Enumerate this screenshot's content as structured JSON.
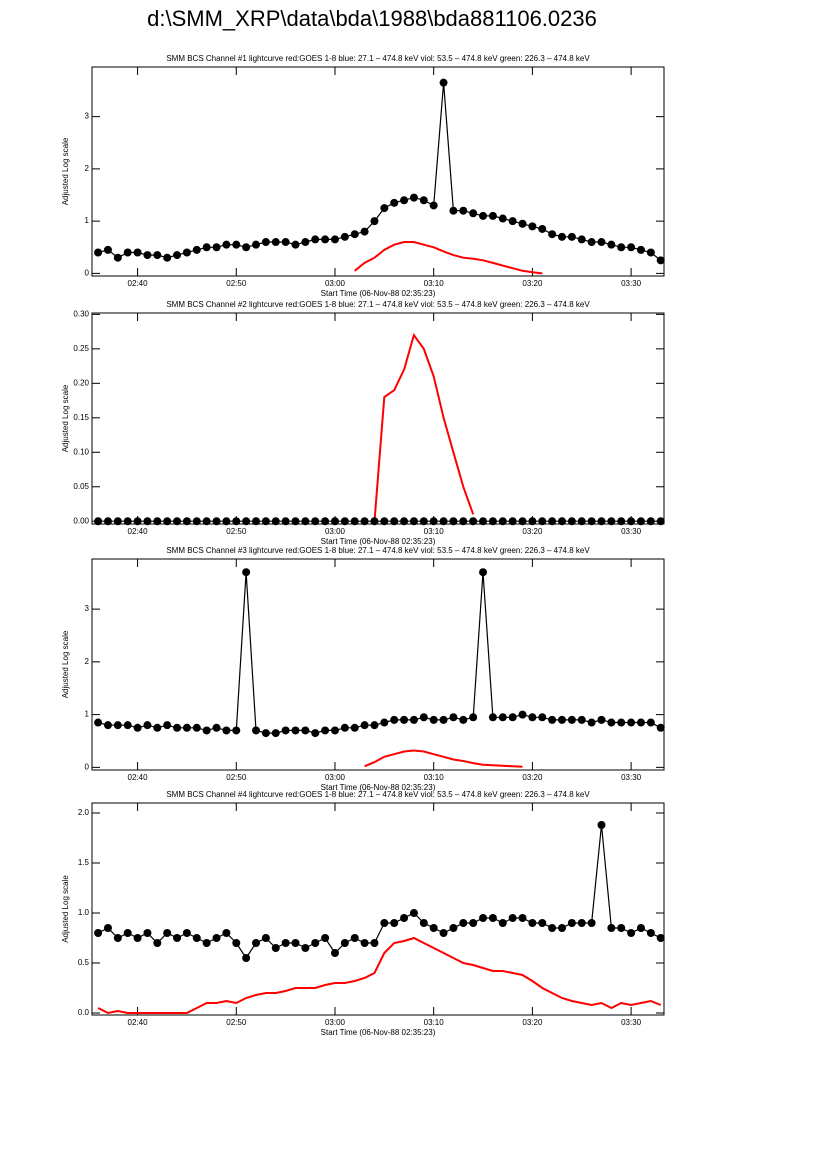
{
  "title": "d:\\SMM_XRP\\data\\bda\\1988\\bda881106.0236",
  "chart_data": [
    {
      "type": "line",
      "title": "SMM BCS Channel #1 lightcurve  red:GOES 1-8  blue: 27.1 – 474.8 keV  viol: 53.5 – 474.8 keV  green: 226.3 – 474.8 keV",
      "xlabel": "Start Time (06-Nov-88 02:35:23)",
      "ylabel": "Adjusted Log scale",
      "xlim": [
        "02:35:23",
        "03:33:20"
      ],
      "xticks": [
        "02:40",
        "02:50",
        "03:00",
        "03:10",
        "03:20",
        "03:30"
      ],
      "ylim": [
        -0.05,
        3.95
      ],
      "yticks": [
        0,
        1,
        2,
        3
      ],
      "x": [
        "02:36",
        "02:37",
        "02:38",
        "02:39",
        "02:40",
        "02:41",
        "02:42",
        "02:43",
        "02:44",
        "02:45",
        "02:46",
        "02:47",
        "02:48",
        "02:49",
        "02:50",
        "02:51",
        "02:52",
        "02:53",
        "02:54",
        "02:55",
        "02:56",
        "02:57",
        "02:58",
        "02:59",
        "03:00",
        "03:01",
        "03:02",
        "03:03",
        "03:04",
        "03:05",
        "03:06",
        "03:07",
        "03:08",
        "03:09",
        "03:10",
        "03:11",
        "03:12",
        "03:13",
        "03:14",
        "03:15",
        "03:16",
        "03:17",
        "03:18",
        "03:19",
        "03:20",
        "03:21",
        "03:22",
        "03:23",
        "03:24",
        "03:25",
        "03:26",
        "03:27",
        "03:28",
        "03:29",
        "03:30",
        "03:31",
        "03:32",
        "03:33"
      ],
      "series": [
        {
          "color": "#ff0000",
          "values": [
            null,
            null,
            null,
            null,
            null,
            null,
            null,
            null,
            null,
            null,
            null,
            null,
            null,
            null,
            null,
            null,
            null,
            null,
            null,
            null,
            null,
            null,
            null,
            null,
            null,
            null,
            0.05,
            0.2,
            0.3,
            0.45,
            0.55,
            0.6,
            0.6,
            0.55,
            0.5,
            0.42,
            0.35,
            0.3,
            0.28,
            0.25,
            0.2,
            0.15,
            0.1,
            0.05,
            0.02,
            0.0,
            null,
            null,
            null,
            null,
            null,
            null,
            null,
            null,
            null,
            null,
            null,
            null
          ]
        },
        {
          "color": "#000000",
          "markers": true,
          "values": [
            0.4,
            0.45,
            0.3,
            0.4,
            0.4,
            0.35,
            0.35,
            0.3,
            0.35,
            0.4,
            0.45,
            0.5,
            0.5,
            0.55,
            0.55,
            0.5,
            0.55,
            0.6,
            0.6,
            0.6,
            0.55,
            0.6,
            0.65,
            0.65,
            0.65,
            0.7,
            0.75,
            0.8,
            1.0,
            1.25,
            1.35,
            1.4,
            1.45,
            1.4,
            1.3,
            3.65,
            1.2,
            1.2,
            1.15,
            1.1,
            1.1,
            1.05,
            1.0,
            0.95,
            0.9,
            0.85,
            0.75,
            0.7,
            0.7,
            0.65,
            0.6,
            0.6,
            0.55,
            0.5,
            0.5,
            0.45,
            0.4,
            0.25
          ]
        }
      ]
    },
    {
      "type": "line",
      "title": "SMM BCS Channel #2 lightcurve  red:GOES 1-8  blue: 27.1 – 474.8 keV  viol: 53.5 – 474.8 keV  green: 226.3 – 474.8 keV",
      "xlabel": "Start Time (06-Nov-88 02:35:23)",
      "ylabel": "Adjusted Log scale",
      "xlim": [
        "02:35:23",
        "03:33:20"
      ],
      "xticks": [
        "02:40",
        "02:50",
        "03:00",
        "03:10",
        "03:20",
        "03:30"
      ],
      "ylim": [
        -0.004,
        0.302
      ],
      "yticks": [
        {
          "value": 0,
          "label": "0.00"
        },
        {
          "value": 0.05,
          "label": "0.05"
        },
        {
          "value": 0.1,
          "label": "0.10"
        },
        {
          "value": 0.15,
          "label": "0.15"
        },
        {
          "value": 0.2,
          "label": "0.20"
        },
        {
          "value": 0.25,
          "label": "0.25"
        },
        {
          "value": 0.3,
          "label": "0.30"
        }
      ],
      "x": [
        "02:36",
        "02:37",
        "02:38",
        "02:39",
        "02:40",
        "02:41",
        "02:42",
        "02:43",
        "02:44",
        "02:45",
        "02:46",
        "02:47",
        "02:48",
        "02:49",
        "02:50",
        "02:51",
        "02:52",
        "02:53",
        "02:54",
        "02:55",
        "02:56",
        "02:57",
        "02:58",
        "02:59",
        "03:00",
        "03:01",
        "03:02",
        "03:03",
        "03:04",
        "03:05",
        "03:06",
        "03:07",
        "03:08",
        "03:09",
        "03:10",
        "03:11",
        "03:12",
        "03:13",
        "03:14",
        "03:15",
        "03:16",
        "03:17",
        "03:18",
        "03:19",
        "03:20",
        "03:21",
        "03:22",
        "03:23",
        "03:24",
        "03:25",
        "03:26",
        "03:27",
        "03:28",
        "03:29",
        "03:30",
        "03:31",
        "03:32",
        "03:33"
      ],
      "series": [
        {
          "color": "#ff0000",
          "values": [
            null,
            null,
            null,
            null,
            null,
            null,
            null,
            null,
            null,
            null,
            null,
            null,
            null,
            null,
            null,
            null,
            null,
            null,
            null,
            null,
            null,
            null,
            null,
            null,
            null,
            null,
            null,
            null,
            0,
            0.18,
            0.19,
            0.22,
            0.27,
            0.25,
            0.21,
            0.15,
            0.1,
            0.05,
            0.01,
            null,
            null,
            null,
            null,
            null,
            null,
            null,
            null,
            null,
            null,
            null,
            null,
            null,
            null,
            null,
            null,
            null,
            null,
            null
          ]
        },
        {
          "color": "#000000",
          "markers": true,
          "values": [
            0,
            0,
            0,
            0,
            0,
            0,
            0,
            0,
            0,
            0,
            0,
            0,
            0,
            0,
            0,
            0,
            0,
            0,
            0,
            0,
            0,
            0,
            0,
            0,
            0,
            0,
            0,
            0,
            0,
            0,
            0,
            0,
            0,
            0,
            0,
            0,
            0,
            0,
            0,
            0,
            0,
            0,
            0,
            0,
            0,
            0,
            0,
            0,
            0,
            0,
            0,
            0,
            0,
            0,
            0,
            0,
            0,
            0
          ]
        }
      ]
    },
    {
      "type": "line",
      "title": "SMM BCS Channel #3 lightcurve  red:GOES 1-8  blue: 27.1 – 474.8 keV  viol: 53.5 – 474.8 keV  green: 226.3 – 474.8 keV",
      "xlabel": "Start Time (06-Nov-88 02:35:23)",
      "ylabel": "Adjusted Log scale",
      "xlim": [
        "02:35:23",
        "03:33:20"
      ],
      "xticks": [
        "02:40",
        "02:50",
        "03:00",
        "03:10",
        "03:20",
        "03:30"
      ],
      "ylim": [
        -0.05,
        3.95
      ],
      "yticks": [
        0,
        1,
        2,
        3
      ],
      "x": [
        "02:36",
        "02:37",
        "02:38",
        "02:39",
        "02:40",
        "02:41",
        "02:42",
        "02:43",
        "02:44",
        "02:45",
        "02:46",
        "02:47",
        "02:48",
        "02:49",
        "02:50",
        "02:51",
        "02:52",
        "02:53",
        "02:54",
        "02:55",
        "02:56",
        "02:57",
        "02:58",
        "02:59",
        "03:00",
        "03:01",
        "03:02",
        "03:03",
        "03:04",
        "03:05",
        "03:06",
        "03:07",
        "03:08",
        "03:09",
        "03:10",
        "03:11",
        "03:12",
        "03:13",
        "03:14",
        "03:15",
        "03:16",
        "03:17",
        "03:18",
        "03:19",
        "03:20",
        "03:21",
        "03:22",
        "03:23",
        "03:24",
        "03:25",
        "03:26",
        "03:27",
        "03:28",
        "03:29",
        "03:30",
        "03:31",
        "03:32",
        "03:33"
      ],
      "series": [
        {
          "color": "#ff0000",
          "values": [
            null,
            null,
            null,
            null,
            null,
            null,
            null,
            null,
            null,
            null,
            null,
            null,
            null,
            null,
            null,
            null,
            null,
            null,
            null,
            null,
            null,
            null,
            null,
            null,
            null,
            null,
            null,
            0.02,
            0.1,
            0.2,
            0.25,
            0.3,
            0.32,
            0.3,
            0.25,
            0.2,
            0.15,
            0.12,
            0.08,
            0.05,
            0.04,
            0.03,
            0.02,
            0.01,
            null,
            null,
            null,
            null,
            null,
            null,
            null,
            null,
            null,
            null,
            null,
            null,
            null,
            null
          ]
        },
        {
          "color": "#000000",
          "markers": true,
          "values": [
            0.85,
            0.8,
            0.8,
            0.8,
            0.75,
            0.8,
            0.75,
            0.8,
            0.75,
            0.75,
            0.75,
            0.7,
            0.75,
            0.7,
            0.7,
            3.7,
            0.7,
            0.65,
            0.65,
            0.7,
            0.7,
            0.7,
            0.65,
            0.7,
            0.7,
            0.75,
            0.75,
            0.8,
            0.8,
            0.85,
            0.9,
            0.9,
            0.9,
            0.95,
            0.9,
            0.9,
            0.95,
            0.9,
            0.95,
            3.7,
            0.95,
            0.95,
            0.95,
            1.0,
            0.95,
            0.95,
            0.9,
            0.9,
            0.9,
            0.9,
            0.85,
            0.9,
            0.85,
            0.85,
            0.85,
            0.85,
            0.85,
            0.75
          ]
        }
      ]
    },
    {
      "type": "line",
      "title": "SMM BCS Channel #4 lightcurve  red:GOES 1-8  blue: 27.1 – 474.8 keV  viol: 53.5 – 474.8 keV  green: 226.3 – 474.8 keV",
      "xlabel": "Start Time (06-Nov-88 02:35:23)",
      "ylabel": "Adjusted Log scale",
      "xlim": [
        "02:35:23",
        "03:33:20"
      ],
      "xticks": [
        "02:40",
        "02:50",
        "03:00",
        "03:10",
        "03:20",
        "03:30"
      ],
      "ylim": [
        -0.02,
        2.1
      ],
      "yticks": [
        {
          "value": 0,
          "label": "0.0"
        },
        {
          "value": 0.5,
          "label": "0.5"
        },
        {
          "value": 1,
          "label": "1.0"
        },
        {
          "value": 1.5,
          "label": "1.5"
        },
        {
          "value": 2,
          "label": "2.0"
        }
      ],
      "x": [
        "02:36",
        "02:37",
        "02:38",
        "02:39",
        "02:40",
        "02:41",
        "02:42",
        "02:43",
        "02:44",
        "02:45",
        "02:46",
        "02:47",
        "02:48",
        "02:49",
        "02:50",
        "02:51",
        "02:52",
        "02:53",
        "02:54",
        "02:55",
        "02:56",
        "02:57",
        "02:58",
        "02:59",
        "03:00",
        "03:01",
        "03:02",
        "03:03",
        "03:04",
        "03:05",
        "03:06",
        "03:07",
        "03:08",
        "03:09",
        "03:10",
        "03:11",
        "03:12",
        "03:13",
        "03:14",
        "03:15",
        "03:16",
        "03:17",
        "03:18",
        "03:19",
        "03:20",
        "03:21",
        "03:22",
        "03:23",
        "03:24",
        "03:25",
        "03:26",
        "03:27",
        "03:28",
        "03:29",
        "03:30",
        "03:31",
        "03:32",
        "03:33"
      ],
      "series": [
        {
          "color": "#ff0000",
          "values": [
            0.05,
            0.0,
            0.02,
            0.0,
            0.0,
            0.0,
            0.0,
            0.0,
            0.0,
            0.0,
            0.05,
            0.1,
            0.1,
            0.12,
            0.1,
            0.15,
            0.18,
            0.2,
            0.2,
            0.22,
            0.25,
            0.25,
            0.25,
            0.28,
            0.3,
            0.3,
            0.32,
            0.35,
            0.4,
            0.6,
            0.7,
            0.72,
            0.75,
            0.7,
            0.65,
            0.6,
            0.55,
            0.5,
            0.48,
            0.45,
            0.42,
            0.42,
            0.4,
            0.38,
            0.32,
            0.25,
            0.2,
            0.15,
            0.12,
            0.1,
            0.08,
            0.1,
            0.05,
            0.1,
            0.08,
            0.1,
            0.12,
            0.08
          ]
        },
        {
          "color": "#000000",
          "markers": true,
          "values": [
            0.8,
            0.85,
            0.75,
            0.8,
            0.75,
            0.8,
            0.7,
            0.8,
            0.75,
            0.8,
            0.75,
            0.7,
            0.75,
            0.8,
            0.7,
            0.55,
            0.7,
            0.75,
            0.65,
            0.7,
            0.7,
            0.65,
            0.7,
            0.75,
            0.6,
            0.7,
            0.75,
            0.7,
            0.7,
            0.9,
            0.9,
            0.95,
            1.0,
            0.9,
            0.85,
            0.8,
            0.85,
            0.9,
            0.9,
            0.95,
            0.95,
            0.9,
            0.95,
            0.95,
            0.9,
            0.9,
            0.85,
            0.85,
            0.9,
            0.9,
            0.9,
            1.88,
            0.85,
            0.85,
            0.8,
            0.85,
            0.8,
            0.75
          ]
        }
      ]
    }
  ]
}
